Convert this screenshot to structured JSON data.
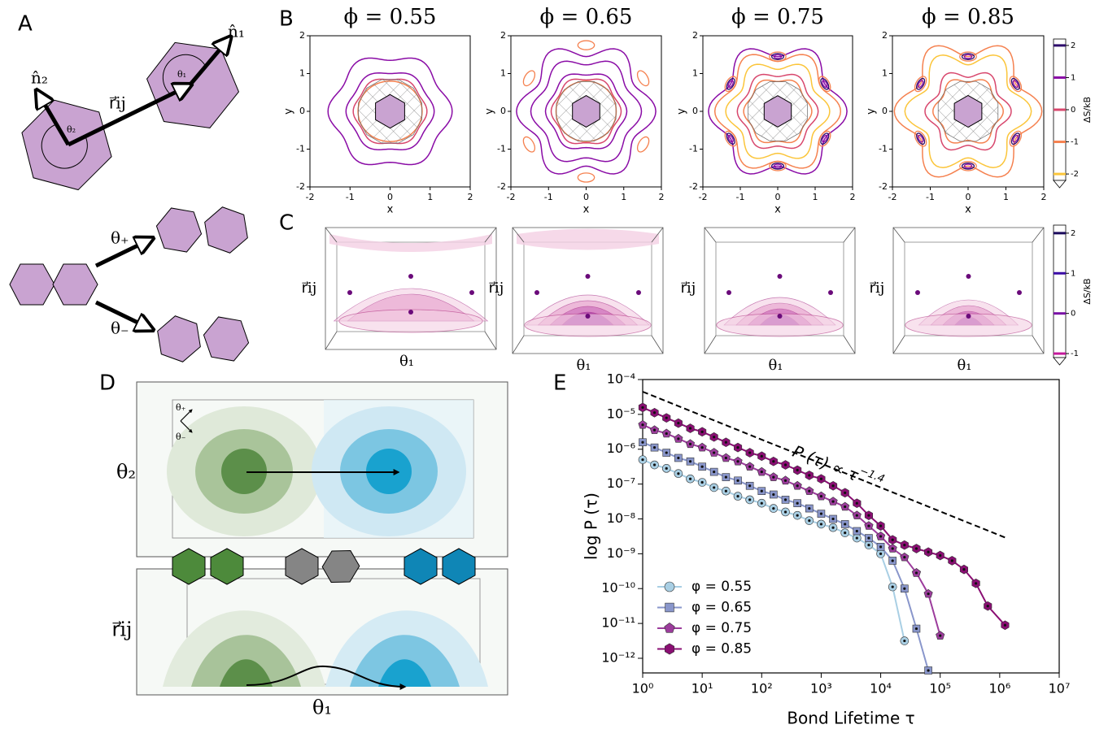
{
  "panel_labels": [
    "A",
    "B",
    "C",
    "D",
    "E"
  ],
  "panel_a": {
    "n1": "n̂₁",
    "n2": "n̂₂",
    "r": "r⃗ij",
    "theta1": "θ₁",
    "theta2": "θ₂",
    "theta_plus": "θ₊",
    "theta_minus": "θ₋"
  },
  "panel_b": {
    "titles": [
      "ϕ = 0.55",
      "ϕ = 0.65",
      "ϕ = 0.75",
      "ϕ = 0.85"
    ],
    "xlabel": "x",
    "ylabel": "y",
    "xlim": [
      -2,
      2
    ],
    "ylim": [
      -2,
      2
    ],
    "xticks": [
      -2,
      -1,
      0,
      1,
      2
    ],
    "yticks": [
      -2,
      -1,
      0,
      1,
      2
    ],
    "colorbar": {
      "label": "ΔS/kB",
      "lim": [
        -2.2,
        2.2
      ],
      "ticks": [
        2,
        1,
        0,
        -1,
        -2
      ],
      "colors": [
        "#2d0b6b",
        "#8a0ca6",
        "#d8476d",
        "#f5814f",
        "#fbc53a"
      ]
    }
  },
  "panel_c": {
    "ylabel": "r⃗ij",
    "xlabel": "θ₁",
    "colorbar": {
      "label": "ΔS/kB",
      "lim": [
        -1.1,
        2.2
      ],
      "ticks": [
        2,
        1,
        0,
        -1
      ],
      "colors": [
        "#1b0a5c",
        "#3b0ca6",
        "#7a12a6",
        "#c4189b"
      ]
    }
  },
  "panel_d": {
    "upper_label": "θ₂",
    "lower_label": "r⃗ij",
    "xlabel": "θ₁",
    "theta_plus": "θ₊",
    "theta_minus": "θ₋"
  },
  "chart_data": {
    "type": "line",
    "xlabel": "Bond Lifetime τ",
    "ylabel": "log P (τ)",
    "xscale": "log",
    "yscale": "log",
    "xlim": [
      1,
      10000000
    ],
    "ylim": [
      3.8e-13,
      0.0001
    ],
    "xticks": [
      {
        "value": 1,
        "label": "10⁰"
      },
      {
        "value": 10,
        "label": "10¹"
      },
      {
        "value": 100,
        "label": "10²"
      },
      {
        "value": 1000,
        "label": "10³"
      },
      {
        "value": 10000,
        "label": "10⁴"
      },
      {
        "value": 100000,
        "label": "10⁵"
      },
      {
        "value": 1000000,
        "label": "10⁶"
      },
      {
        "value": 10000000,
        "label": "10⁷"
      }
    ],
    "yticks": [
      {
        "value": 1e-12,
        "label": "10⁻¹²"
      },
      {
        "value": 1e-11,
        "label": "10⁻¹¹"
      },
      {
        "value": 1e-10,
        "label": "10⁻¹⁰"
      },
      {
        "value": 1e-09,
        "label": "10⁻⁹"
      },
      {
        "value": 1e-08,
        "label": "10⁻⁸"
      },
      {
        "value": 1e-07,
        "label": "10⁻⁷"
      },
      {
        "value": 1e-06,
        "label": "10⁻⁶"
      },
      {
        "value": 1e-05,
        "label": "10⁻⁵"
      },
      {
        "value": 0.0001,
        "label": "10⁻⁴"
      }
    ],
    "legend": "lower left",
    "series": [
      {
        "name": "φ = 0.55",
        "color": "#a9cfe4",
        "marker": "circle",
        "x": [
          1,
          1.58,
          2.51,
          3.98,
          6.31,
          10,
          15.8,
          25.1,
          39.8,
          63.1,
          100,
          158,
          251,
          398,
          631,
          1000,
          1585,
          2512,
          3981,
          6310,
          10000,
          15849,
          25119
        ],
        "values": [
          5.01e-07,
          3.55e-07,
          2.82e-07,
          2e-07,
          1.41e-07,
          1.12e-07,
          7.94e-08,
          6.31e-08,
          4.47e-08,
          3.55e-08,
          2.82e-08,
          2e-08,
          1.58e-08,
          1.26e-08,
          8.91e-09,
          7.08e-09,
          5.62e-09,
          3.98e-09,
          2.82e-09,
          1.78e-09,
          1e-09,
          1.12e-10,
          3.16e-12
        ]
      },
      {
        "name": "φ = 0.65",
        "color": "#8996cb",
        "marker": "square",
        "x": [
          1,
          1.58,
          2.51,
          3.98,
          6.31,
          10,
          15.8,
          25.1,
          39.8,
          63.1,
          100,
          158,
          251,
          398,
          631,
          1000,
          1585,
          2512,
          3981,
          6310,
          10000,
          15849,
          25119,
          39811,
          63096
        ],
        "values": [
          1.58e-06,
          1.12e-06,
          7.94e-07,
          5.62e-07,
          4.47e-07,
          3.16e-07,
          2.24e-07,
          1.58e-07,
          1.26e-07,
          8.91e-08,
          6.31e-08,
          5.01e-08,
          3.55e-08,
          2.82e-08,
          2e-08,
          1.41e-08,
          1e-08,
          7.08e-09,
          4.47e-09,
          2.82e-09,
          1.58e-09,
          6.31e-10,
          1e-10,
          7.08e-12,
          4.47e-13
        ]
      },
      {
        "name": "φ = 0.75",
        "color": "#9c3c9c",
        "marker": "pentagon",
        "x": [
          1,
          1.58,
          2.51,
          3.98,
          6.31,
          10,
          15.8,
          25.1,
          39.8,
          63.1,
          100,
          158,
          251,
          398,
          631,
          1000,
          1585,
          2512,
          3981,
          6310,
          10000,
          15849,
          25119,
          39811,
          63096,
          100000
        ],
        "values": [
          5.01e-06,
          3.55e-06,
          2.82e-06,
          2e-06,
          1.41e-06,
          1.12e-06,
          7.94e-07,
          5.62e-07,
          4.47e-07,
          3.16e-07,
          2.24e-07,
          1.58e-07,
          1.26e-07,
          8.91e-08,
          6.31e-08,
          4.47e-08,
          3.16e-08,
          2.24e-08,
          1.26e-08,
          6.31e-09,
          3.16e-09,
          1.41e-09,
          7.94e-10,
          2.82e-10,
          7.08e-11,
          4.47e-12
        ]
      },
      {
        "name": "φ = 0.85",
        "color": "#8a0e73",
        "marker": "hexagon",
        "x": [
          1,
          1.58,
          2.51,
          3.98,
          6.31,
          10,
          15.8,
          25.1,
          39.8,
          63.1,
          100,
          158,
          251,
          398,
          631,
          1000,
          1585,
          2512,
          3981,
          6310,
          10000,
          15849,
          25119,
          39811,
          63096,
          100000,
          158489,
          251189,
          398107,
          630957,
          1230000
        ],
        "values": [
          1.58e-05,
          1.12e-05,
          7.94e-06,
          5.62e-06,
          3.98e-06,
          3.16e-06,
          2.24e-06,
          1.58e-06,
          1.12e-06,
          7.94e-07,
          6.31e-07,
          4.47e-07,
          3.55e-07,
          2.51e-07,
          1.78e-07,
          1.41e-07,
          8.91e-08,
          5.62e-08,
          2.82e-08,
          1.26e-08,
          6.31e-09,
          2.51e-09,
          1.78e-09,
          1.41e-09,
          1.12e-09,
          8.91e-10,
          6.31e-10,
          3.55e-10,
          1.41e-10,
          3.16e-11,
          8.91e-12
        ]
      }
    ],
    "reference_line": {
      "x": [
        1,
        1300000
      ],
      "values": [
        4.47e-05,
        2.82e-09
      ]
    },
    "annotation": {
      "text": "P (τ) ∝ τ",
      "exponent": "−1.4"
    }
  }
}
